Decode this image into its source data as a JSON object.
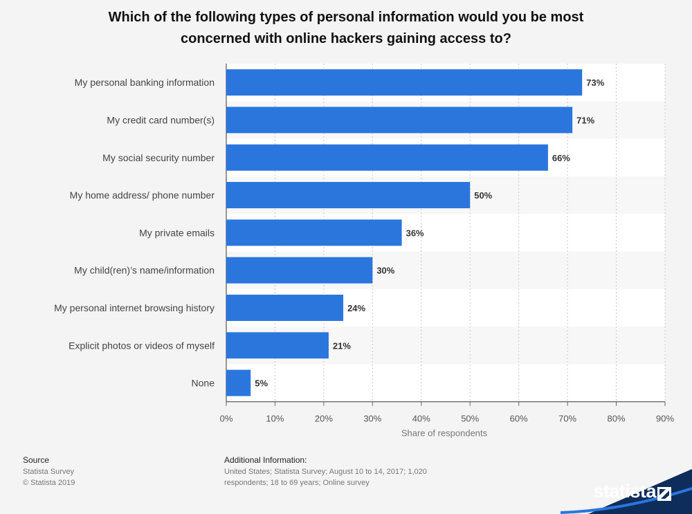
{
  "title_lines": [
    "Which of the following types of personal information would you be most",
    "concerned with online hackers gaining access to?"
  ],
  "chart_data": {
    "type": "bar",
    "orientation": "horizontal",
    "title": "Which of the following types of personal information would you be most concerned with online hackers gaining access to?",
    "categories": [
      "My personal banking information",
      "My credit card number(s)",
      "My social security number",
      "My home address/ phone number",
      "My private emails",
      "My child(ren)’s name/information",
      "My personal internet browsing history",
      "Explicit photos or videos of myself",
      "None"
    ],
    "values": [
      73,
      71,
      66,
      50,
      36,
      30,
      24,
      21,
      5
    ],
    "value_labels": [
      "73%",
      "71%",
      "66%",
      "50%",
      "36%",
      "30%",
      "24%",
      "21%",
      "5%"
    ],
    "xlabel": "Share of respondents",
    "ylabel": "",
    "xlim": [
      0,
      90
    ],
    "xticks": [
      "0%",
      "10%",
      "20%",
      "30%",
      "40%",
      "50%",
      "60%",
      "70%",
      "80%",
      "90%"
    ],
    "grid": true,
    "bar_color": "#2a76dd"
  },
  "footer": {
    "source_label": "Source",
    "source_lines": [
      "Statista Survey",
      "© Statista 2019"
    ],
    "additional_label": "Additional Information:",
    "additional_lines": [
      "United States; Statista Survey; August 10 to 14, 2017; 1,020",
      "respondents; 18 to 69 years; Online survey"
    ]
  },
  "logo": {
    "text": "statista",
    "icon": "statista-logo-icon",
    "color": "#0e2d5a"
  }
}
